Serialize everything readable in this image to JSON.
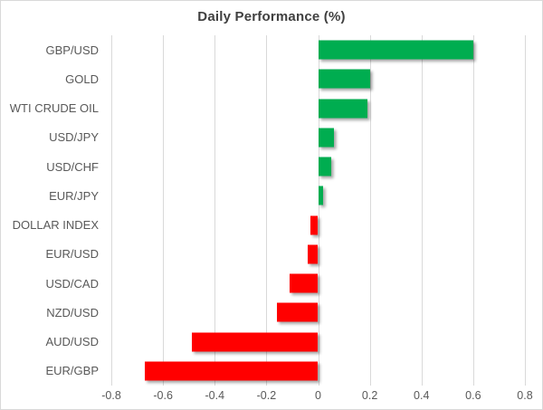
{
  "chart_data": {
    "type": "bar",
    "orientation": "horizontal",
    "title": "Daily Performance (%)",
    "categories": [
      "GBP/USD",
      "GOLD",
      "WTI CRUDE OIL",
      "USD/JPY",
      "USD/CHF",
      "EUR/JPY",
      "DOLLAR INDEX",
      "EUR/USD",
      "USD/CAD",
      "NZD/USD",
      "AUD/USD",
      "EUR/GBP"
    ],
    "values": [
      0.6,
      0.2,
      0.19,
      0.06,
      0.05,
      0.02,
      -0.03,
      -0.04,
      -0.11,
      -0.16,
      -0.49,
      -0.67
    ],
    "xlabel": "",
    "ylabel": "",
    "xlim": [
      -0.8,
      0.8
    ],
    "xticks": [
      -0.8,
      -0.6,
      -0.4,
      -0.2,
      0,
      0.2,
      0.4,
      0.6,
      0.8
    ],
    "xtick_labels": [
      "-0.8",
      "-0.6",
      "-0.4",
      "-0.2",
      "0",
      "0.2",
      "0.4",
      "0.6",
      "0.8"
    ],
    "grid": "vertical-on",
    "legend": "none",
    "colors": {
      "positive_bar": "#00AD50",
      "negative_bar": "#FF0000",
      "gridline": "#d9d9d9",
      "zero_axis": "#d9d9d9",
      "title_text": "#404040",
      "label_text": "#595959",
      "frame_border": "#d9d9d9"
    }
  }
}
